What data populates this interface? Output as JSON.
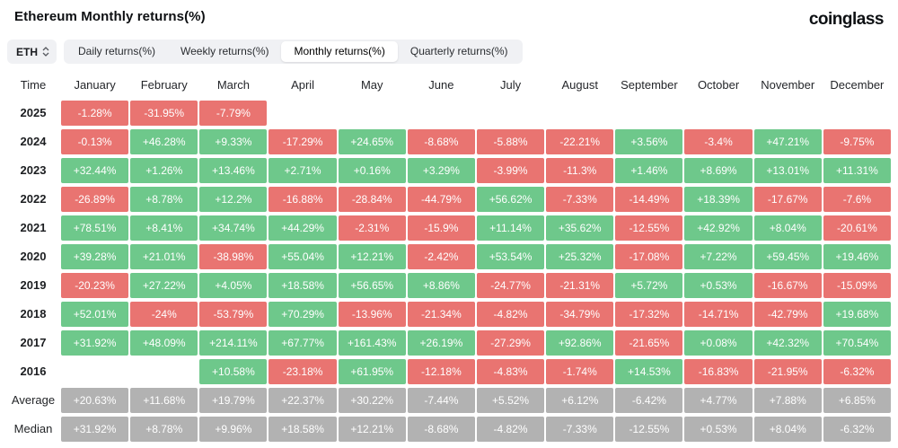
{
  "page": {
    "title": "Ethereum Monthly returns(%)",
    "brand": "coinglass"
  },
  "controls": {
    "symbol_select": {
      "value": "ETH"
    },
    "tabs": [
      {
        "id": "daily",
        "label": "Daily returns(%)",
        "active": false
      },
      {
        "id": "weekly",
        "label": "Weekly returns(%)",
        "active": false
      },
      {
        "id": "monthly",
        "label": "Monthly returns(%)",
        "active": true
      },
      {
        "id": "quarterly",
        "label": "Quarterly returns(%)",
        "active": false
      }
    ]
  },
  "colors": {
    "positive": "#6ec88b",
    "negative": "#e97471",
    "summary": "#b2b2b2"
  },
  "table": {
    "time_header": "Time",
    "months": [
      "January",
      "February",
      "March",
      "April",
      "May",
      "June",
      "July",
      "August",
      "September",
      "October",
      "November",
      "December"
    ],
    "rows": [
      {
        "label": "2025",
        "type": "year",
        "values": [
          "-1.28%",
          "-31.95%",
          "-7.79%",
          "",
          "",
          "",
          "",
          "",
          "",
          "",
          "",
          ""
        ]
      },
      {
        "label": "2024",
        "type": "year",
        "values": [
          "-0.13%",
          "+46.28%",
          "+9.33%",
          "-17.29%",
          "+24.65%",
          "-8.68%",
          "-5.88%",
          "-22.21%",
          "+3.56%",
          "-3.4%",
          "+47.21%",
          "-9.75%"
        ]
      },
      {
        "label": "2023",
        "type": "year",
        "values": [
          "+32.44%",
          "+1.26%",
          "+13.46%",
          "+2.71%",
          "+0.16%",
          "+3.29%",
          "-3.99%",
          "-11.3%",
          "+1.46%",
          "+8.69%",
          "+13.01%",
          "+11.31%"
        ]
      },
      {
        "label": "2022",
        "type": "year",
        "values": [
          "-26.89%",
          "+8.78%",
          "+12.2%",
          "-16.88%",
          "-28.84%",
          "-44.79%",
          "+56.62%",
          "-7.33%",
          "-14.49%",
          "+18.39%",
          "-17.67%",
          "-7.6%"
        ]
      },
      {
        "label": "2021",
        "type": "year",
        "values": [
          "+78.51%",
          "+8.41%",
          "+34.74%",
          "+44.29%",
          "-2.31%",
          "-15.9%",
          "+11.14%",
          "+35.62%",
          "-12.55%",
          "+42.92%",
          "+8.04%",
          "-20.61%"
        ]
      },
      {
        "label": "2020",
        "type": "year",
        "values": [
          "+39.28%",
          "+21.01%",
          "-38.98%",
          "+55.04%",
          "+12.21%",
          "-2.42%",
          "+53.54%",
          "+25.32%",
          "-17.08%",
          "+7.22%",
          "+59.45%",
          "+19.46%"
        ]
      },
      {
        "label": "2019",
        "type": "year",
        "values": [
          "-20.23%",
          "+27.22%",
          "+4.05%",
          "+18.58%",
          "+56.65%",
          "+8.86%",
          "-24.77%",
          "-21.31%",
          "+5.72%",
          "+0.53%",
          "-16.67%",
          "-15.09%"
        ]
      },
      {
        "label": "2018",
        "type": "year",
        "values": [
          "+52.01%",
          "-24%",
          "-53.79%",
          "+70.29%",
          "-13.96%",
          "-21.34%",
          "-4.82%",
          "-34.79%",
          "-17.32%",
          "-14.71%",
          "-42.79%",
          "+19.68%"
        ]
      },
      {
        "label": "2017",
        "type": "year",
        "values": [
          "+31.92%",
          "+48.09%",
          "+214.11%",
          "+67.77%",
          "+161.43%",
          "+26.19%",
          "-27.29%",
          "+92.86%",
          "-21.65%",
          "+0.08%",
          "+42.32%",
          "+70.54%"
        ]
      },
      {
        "label": "2016",
        "type": "year",
        "values": [
          "",
          "",
          "+10.58%",
          "-23.18%",
          "+61.95%",
          "-12.18%",
          "-4.83%",
          "-1.74%",
          "+14.53%",
          "-16.83%",
          "-21.95%",
          "-6.32%"
        ]
      },
      {
        "label": "Average",
        "type": "summary",
        "values": [
          "+20.63%",
          "+11.68%",
          "+19.79%",
          "+22.37%",
          "+30.22%",
          "-7.44%",
          "+5.52%",
          "+6.12%",
          "-6.42%",
          "+4.77%",
          "+7.88%",
          "+6.85%"
        ]
      },
      {
        "label": "Median",
        "type": "summary",
        "values": [
          "+31.92%",
          "+8.78%",
          "+9.96%",
          "+18.58%",
          "+12.21%",
          "-8.68%",
          "-4.82%",
          "-7.33%",
          "-12.55%",
          "+0.53%",
          "+8.04%",
          "-6.32%"
        ]
      }
    ]
  }
}
